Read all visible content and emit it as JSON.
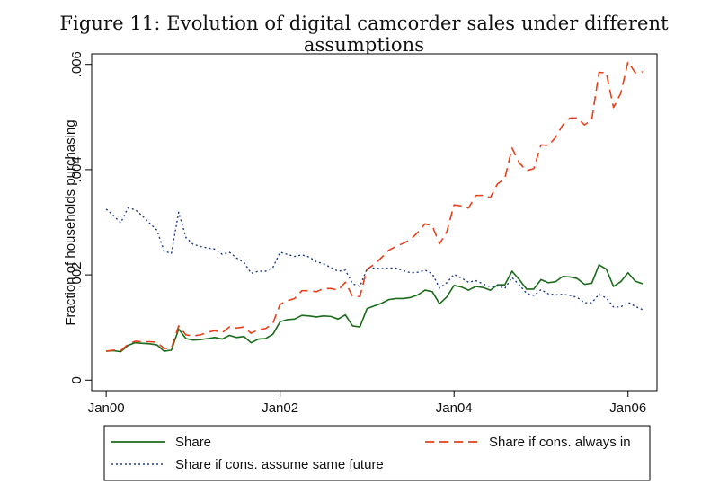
{
  "figure_title": "Figure 11: Evolution of digital camcorder sales under different assumptions",
  "chart_data": {
    "type": "line",
    "title": "Figure 11: Evolution of digital camcorder sales under different assumptions",
    "xlabel": "",
    "ylabel": "Fraction of households purchasing",
    "x_start": "Jan00",
    "x_step_months": 1,
    "xlim_months": [
      -2,
      76
    ],
    "ylim": [
      -0.0002,
      0.0062
    ],
    "x_ticks": [
      {
        "month": 0,
        "label": "Jan00"
      },
      {
        "month": 24,
        "label": "Jan02"
      },
      {
        "month": 48,
        "label": "Jan04"
      },
      {
        "month": 72,
        "label": "Jan06"
      }
    ],
    "y_ticks": [
      {
        "value": 0,
        "label": "0"
      },
      {
        "value": 0.002,
        "label": ".002"
      },
      {
        "value": 0.004,
        "label": ".004"
      },
      {
        "value": 0.006,
        "label": ".006"
      }
    ],
    "legend_placement": "bottom",
    "series": [
      {
        "name": "Share",
        "color": "#1a6b1a",
        "style": "solid",
        "values": [
          0.00055,
          0.00056,
          0.00054,
          0.00066,
          0.00071,
          0.0007,
          0.00069,
          0.00067,
          0.00055,
          0.00057,
          0.00097,
          0.00079,
          0.00076,
          0.00077,
          0.00079,
          0.00081,
          0.00078,
          0.00085,
          0.00081,
          0.00083,
          0.00071,
          0.00078,
          0.00079,
          0.00087,
          0.00111,
          0.00115,
          0.00116,
          0.00123,
          0.00122,
          0.0012,
          0.00122,
          0.00121,
          0.00116,
          0.00124,
          0.00103,
          0.00101,
          0.00136,
          0.00141,
          0.00146,
          0.00153,
          0.00155,
          0.00155,
          0.00157,
          0.00162,
          0.00171,
          0.00168,
          0.00145,
          0.00158,
          0.0018,
          0.00177,
          0.00171,
          0.00178,
          0.00176,
          0.00171,
          0.00181,
          0.00181,
          0.00207,
          0.00191,
          0.00173,
          0.00173,
          0.00191,
          0.00185,
          0.00187,
          0.00197,
          0.00196,
          0.00193,
          0.00182,
          0.00184,
          0.00219,
          0.00211,
          0.00178,
          0.00187,
          0.00204,
          0.00188,
          0.00183
        ]
      },
      {
        "name": "Share if cons. always in",
        "color": "#e8401a",
        "style": "dashed",
        "values": [
          0.00055,
          0.00057,
          0.00056,
          0.00068,
          0.00074,
          0.00073,
          0.00073,
          0.00072,
          0.0006,
          0.00061,
          0.00103,
          0.00086,
          0.00084,
          0.00086,
          0.00091,
          0.00094,
          0.0009,
          0.00101,
          0.00099,
          0.00101,
          0.00089,
          0.00096,
          0.00098,
          0.00108,
          0.00144,
          0.00151,
          0.00155,
          0.0017,
          0.0017,
          0.00168,
          0.00174,
          0.00174,
          0.00171,
          0.00186,
          0.00159,
          0.00159,
          0.00211,
          0.0022,
          0.00233,
          0.00247,
          0.00254,
          0.0026,
          0.00267,
          0.00281,
          0.00297,
          0.00293,
          0.00259,
          0.00282,
          0.00333,
          0.00331,
          0.00327,
          0.00351,
          0.00351,
          0.00347,
          0.00373,
          0.00383,
          0.00441,
          0.00413,
          0.00398,
          0.00402,
          0.00447,
          0.00446,
          0.00461,
          0.00485,
          0.00498,
          0.00498,
          0.00485,
          0.00495,
          0.00585,
          0.00584,
          0.00518,
          0.00545,
          0.00605,
          0.00584,
          0.00586
        ]
      },
      {
        "name": "Share if cons. assume same future",
        "color": "#1f3a8a",
        "style": "dotted",
        "values": [
          0.00325,
          0.00313,
          0.00299,
          0.00327,
          0.00324,
          0.00312,
          0.00298,
          0.00285,
          0.00245,
          0.00241,
          0.00319,
          0.00271,
          0.00258,
          0.00254,
          0.00251,
          0.00249,
          0.00239,
          0.00243,
          0.00232,
          0.00224,
          0.00203,
          0.00207,
          0.00207,
          0.00214,
          0.00243,
          0.00239,
          0.00235,
          0.00238,
          0.00234,
          0.00225,
          0.00221,
          0.00214,
          0.00207,
          0.00209,
          0.00183,
          0.00178,
          0.00212,
          0.00213,
          0.00212,
          0.00213,
          0.00213,
          0.00208,
          0.00204,
          0.00205,
          0.00209,
          0.00202,
          0.00175,
          0.00185,
          0.00201,
          0.00194,
          0.00186,
          0.00189,
          0.00183,
          0.00177,
          0.00179,
          0.00174,
          0.00195,
          0.00181,
          0.00165,
          0.00161,
          0.00172,
          0.00164,
          0.00162,
          0.00163,
          0.00161,
          0.00157,
          0.00147,
          0.00147,
          0.00163,
          0.00156,
          0.00139,
          0.00139,
          0.00148,
          0.0014,
          0.00134
        ]
      }
    ]
  }
}
